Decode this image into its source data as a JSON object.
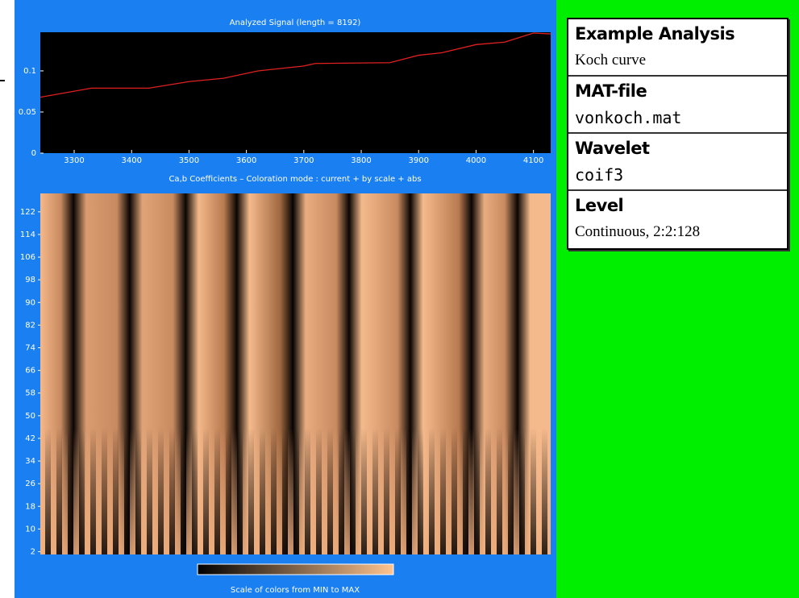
{
  "chart_data": [
    {
      "type": "line",
      "title": "Analyzed Signal  (length = 8192)",
      "x": [
        3241,
        3330,
        3430,
        3500,
        3560,
        3620,
        3700,
        3720,
        3850,
        3900,
        3940,
        4000,
        4050,
        4100,
        4130
      ],
      "values": [
        0.068,
        0.079,
        0.079,
        0.087,
        0.091,
        0.1,
        0.106,
        0.109,
        0.11,
        0.119,
        0.122,
        0.132,
        0.135,
        0.146,
        0.145
      ],
      "color": "#e02020",
      "xlim": [
        3241,
        4130
      ],
      "ylim": [
        0,
        0.147
      ],
      "xticks": [
        3300,
        3400,
        3500,
        3600,
        3700,
        3800,
        3900,
        4000,
        4100
      ],
      "yticks": [
        0,
        0.05,
        0.1
      ]
    },
    {
      "type": "heatmap",
      "title": "Ca,b Coefficients  –  Coloration mode : current + by scale + abs",
      "ylim": [
        1,
        128.5
      ],
      "yticks": [
        2,
        10,
        18,
        26,
        34,
        42,
        50,
        58,
        66,
        74,
        82,
        90,
        98,
        106,
        114,
        122
      ],
      "colorbar_label": "Scale of colors from MIN to MAX"
    }
  ],
  "panel": {
    "sections": [
      {
        "label": "Example Analysis",
        "value": "Koch curve"
      },
      {
        "label": "MAT-file",
        "value": "vonkoch.mat"
      },
      {
        "label": "Wavelet",
        "value": "coif3"
      },
      {
        "label": "Level",
        "value": "Continuous, 2:2:128"
      }
    ]
  }
}
